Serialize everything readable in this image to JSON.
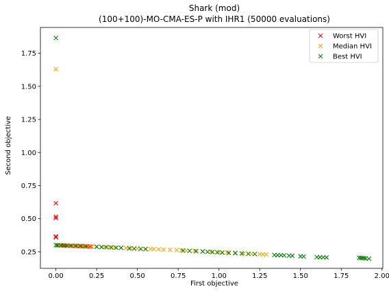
{
  "chart_data": {
    "type": "scatter",
    "title": "Shark (mod)",
    "subtitle": "(100+100)-MO-CMA-ES-P with IHR1 (50000 evaluations)",
    "xlabel": "First objective",
    "ylabel": "Second objective",
    "xlim": [
      -0.095,
      2.005
    ],
    "ylim": [
      0.125,
      1.945
    ],
    "xticks": [
      0.0,
      0.25,
      0.5,
      0.75,
      1.0,
      1.25,
      1.5,
      1.75,
      2.0
    ],
    "xtick_labels": [
      "0.00",
      "0.25",
      "0.50",
      "0.75",
      "1.00",
      "1.25",
      "1.50",
      "1.75",
      "2.00"
    ],
    "yticks": [
      0.25,
      0.5,
      0.75,
      1.0,
      1.25,
      1.5,
      1.75
    ],
    "ytick_labels": [
      "0.25",
      "0.50",
      "0.75",
      "1.00",
      "1.25",
      "1.50",
      "1.75"
    ],
    "legend_position": "top-right",
    "marker": "x",
    "series": [
      {
        "name": "Worst HVI",
        "color": "#ff0000",
        "x": [
          0.0,
          0.0,
          0.0,
          0.0,
          0.0,
          0.01,
          0.02,
          0.03,
          0.04,
          0.05,
          0.06,
          0.07,
          0.08,
          0.09,
          0.1,
          0.11,
          0.12,
          0.13,
          0.14,
          0.15,
          0.16,
          0.17,
          0.18,
          0.19,
          0.2,
          0.21,
          0.22
        ],
        "y": [
          0.617,
          0.515,
          0.505,
          0.366,
          0.36,
          0.3,
          0.299,
          0.299,
          0.298,
          0.298,
          0.297,
          0.297,
          0.296,
          0.296,
          0.295,
          0.295,
          0.294,
          0.294,
          0.293,
          0.293,
          0.292,
          0.292,
          0.291,
          0.291,
          0.29,
          0.29,
          0.289
        ]
      },
      {
        "name": "Median HVI",
        "color": "#ffa500",
        "x": [
          0.0,
          0.0,
          0.02,
          0.05,
          0.08,
          0.11,
          0.14,
          0.17,
          0.2,
          0.22,
          0.25,
          0.28,
          0.3,
          0.33,
          0.36,
          0.4,
          0.43,
          0.46,
          0.5,
          0.55,
          0.58,
          0.6,
          0.63,
          0.66,
          0.7,
          0.74,
          0.77,
          0.8,
          0.85,
          0.9,
          0.95,
          1.0,
          1.05,
          1.1,
          1.15,
          1.2,
          1.25,
          1.27,
          1.29
        ],
        "y": [
          1.629,
          0.3,
          0.299,
          0.298,
          0.296,
          0.295,
          0.294,
          0.292,
          0.291,
          0.29,
          0.289,
          0.287,
          0.286,
          0.284,
          0.283,
          0.281,
          0.279,
          0.278,
          0.276,
          0.273,
          0.272,
          0.271,
          0.269,
          0.267,
          0.265,
          0.263,
          0.262,
          0.26,
          0.257,
          0.254,
          0.251,
          0.248,
          0.245,
          0.242,
          0.238,
          0.235,
          0.232,
          0.231,
          0.23
        ]
      },
      {
        "name": "Best HVI",
        "color": "#008000",
        "x": [
          0.0,
          0.0,
          0.01,
          0.03,
          0.05,
          0.07,
          0.09,
          0.12,
          0.15,
          0.18,
          0.25,
          0.28,
          0.31,
          0.34,
          0.37,
          0.4,
          0.45,
          0.48,
          0.52,
          0.55,
          0.78,
          0.82,
          0.86,
          0.9,
          0.93,
          0.96,
          0.99,
          1.02,
          1.06,
          1.1,
          1.14,
          1.18,
          1.22,
          1.34,
          1.36,
          1.38,
          1.4,
          1.43,
          1.45,
          1.5,
          1.52,
          1.6,
          1.62,
          1.64,
          1.66,
          1.86,
          1.87,
          1.88,
          1.89,
          1.9,
          1.92
        ],
        "y": [
          1.866,
          0.3,
          0.299,
          0.298,
          0.298,
          0.297,
          0.296,
          0.295,
          0.294,
          0.292,
          0.288,
          0.286,
          0.285,
          0.283,
          0.281,
          0.28,
          0.276,
          0.274,
          0.272,
          0.27,
          0.259,
          0.257,
          0.255,
          0.252,
          0.25,
          0.248,
          0.246,
          0.244,
          0.242,
          0.24,
          0.237,
          0.235,
          0.233,
          0.226,
          0.225,
          0.224,
          0.223,
          0.221,
          0.22,
          0.216,
          0.215,
          0.21,
          0.209,
          0.208,
          0.207,
          0.205,
          0.204,
          0.203,
          0.202,
          0.2,
          0.198
        ]
      }
    ]
  }
}
